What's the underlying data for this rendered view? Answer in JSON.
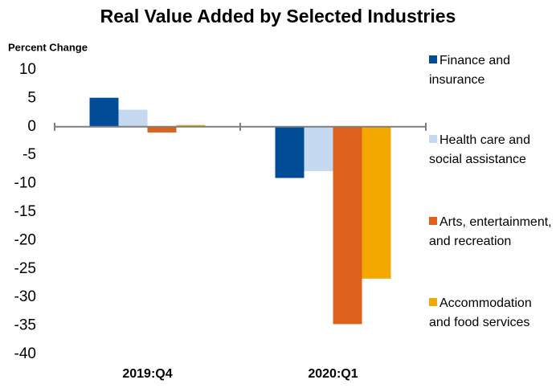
{
  "chart_data": {
    "type": "bar",
    "title": "Real Value Added by Selected Industries",
    "y_label": "Percent Change",
    "categories": [
      "2019:Q4",
      "2020:Q1"
    ],
    "series": [
      {
        "name": "Finance and insurance",
        "color": "#004c97",
        "values": [
          5.1,
          -9.0
        ]
      },
      {
        "name": "Health care and social assistance",
        "color": "#c5d9f1",
        "values": [
          3.0,
          -7.8
        ]
      },
      {
        "name": "Arts, entertainment, and recreation",
        "color": "#dd601c",
        "values": [
          -1.0,
          -34.7
        ]
      },
      {
        "name": "Accommodation and food services",
        "color": "#f3a800",
        "values": [
          0.3,
          -26.7
        ]
      }
    ],
    "ylim": [
      -40,
      10
    ],
    "yticks": [
      10,
      5,
      0,
      -5,
      -10,
      -15,
      -20,
      -25,
      -30,
      -35,
      -40
    ],
    "grid": false,
    "legend": "right"
  }
}
